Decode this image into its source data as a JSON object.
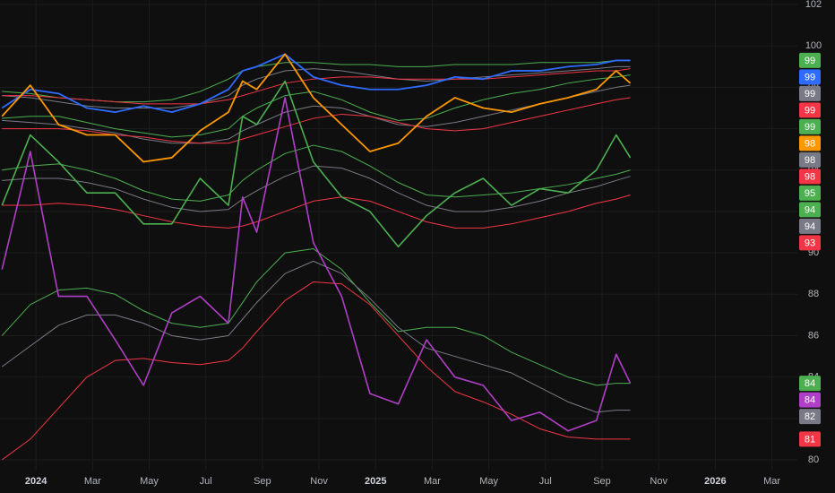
{
  "chart_data": {
    "type": "line",
    "background": "#0f0f0f",
    "grid": true,
    "xlim": [
      -1.27,
      26.9
    ],
    "ylim": [
      79.48,
      102.22
    ],
    "xticks": [
      {
        "value": 0,
        "label": "2024"
      },
      {
        "value": 2,
        "label": "Mar"
      },
      {
        "value": 4,
        "label": "May"
      },
      {
        "value": 6,
        "label": "Jul"
      },
      {
        "value": 8,
        "label": "Sep"
      },
      {
        "value": 10,
        "label": "Nov"
      },
      {
        "value": 12,
        "label": "2025"
      },
      {
        "value": 14,
        "label": "Mar"
      },
      {
        "value": 16,
        "label": "May"
      },
      {
        "value": 18,
        "label": "Jul"
      },
      {
        "value": 20,
        "label": "Sep"
      },
      {
        "value": 22,
        "label": "Nov"
      },
      {
        "value": 24,
        "label": "2026"
      },
      {
        "value": 26,
        "label": "Mar"
      }
    ],
    "yticks": [
      80,
      82,
      84,
      86,
      88,
      90,
      92,
      94,
      96,
      98,
      100,
      102
    ],
    "x": [
      -1.2,
      -0.2,
      0.8,
      1.8,
      2.8,
      3.8,
      4.8,
      5.8,
      6.8,
      7.3,
      7.8,
      8.8,
      9.8,
      10.8,
      11.8,
      12.8,
      13.8,
      14.8,
      15.8,
      16.8,
      17.8,
      18.8,
      19.8,
      20.5,
      21.0
    ],
    "series": [
      {
        "color": "#4caf50",
        "width": 1,
        "end_label": "99",
        "values": [
          97.8,
          97.7,
          97.5,
          97.4,
          97.3,
          97.3,
          97.4,
          97.8,
          98.4,
          98.8,
          99.0,
          99.2,
          99.2,
          99.1,
          99.1,
          99.0,
          99.0,
          99.1,
          99.1,
          99.1,
          99.2,
          99.2,
          99.2,
          99.3,
          99.3
        ]
      },
      {
        "color": "#2f6bff",
        "width": 1.8,
        "end_label": "99",
        "values": [
          97.0,
          97.9,
          97.7,
          97.0,
          96.8,
          97.1,
          96.8,
          97.2,
          97.9,
          98.8,
          99.0,
          99.6,
          98.5,
          98.1,
          97.9,
          97.9,
          98.1,
          98.5,
          98.4,
          98.8,
          98.8,
          99.0,
          99.1,
          99.3,
          99.3
        ]
      },
      {
        "color": "#787b86",
        "width": 1,
        "end_label": "99",
        "values": [
          97.6,
          97.5,
          97.3,
          97.1,
          97.0,
          97.0,
          97.0,
          97.2,
          97.6,
          98.1,
          98.4,
          98.8,
          98.9,
          98.8,
          98.6,
          98.4,
          98.3,
          98.4,
          98.5,
          98.6,
          98.7,
          98.8,
          98.9,
          99.0,
          99.0
        ]
      },
      {
        "color": "#f23645",
        "width": 1,
        "end_label": "99",
        "values": [
          97.6,
          97.6,
          97.5,
          97.4,
          97.3,
          97.2,
          97.2,
          97.2,
          97.4,
          97.6,
          97.8,
          98.2,
          98.4,
          98.5,
          98.5,
          98.4,
          98.4,
          98.4,
          98.4,
          98.5,
          98.6,
          98.7,
          98.8,
          98.8,
          98.9
        ]
      },
      {
        "color": "#4caf50",
        "width": 1,
        "end_label": "99",
        "values": [
          96.5,
          96.6,
          96.6,
          96.3,
          96.0,
          95.8,
          95.6,
          95.7,
          96.0,
          96.6,
          97.0,
          97.6,
          97.8,
          97.4,
          96.8,
          96.4,
          96.5,
          97.0,
          97.4,
          97.7,
          97.9,
          98.2,
          98.4,
          98.5,
          98.6
        ]
      },
      {
        "color": "#ff9800",
        "width": 1.8,
        "end_label": "98",
        "values": [
          96.6,
          98.1,
          96.2,
          95.7,
          95.7,
          94.4,
          94.6,
          95.9,
          96.8,
          98.3,
          97.9,
          99.6,
          97.5,
          96.2,
          94.9,
          95.3,
          96.6,
          97.5,
          97.0,
          96.8,
          97.2,
          97.5,
          97.9,
          98.8,
          98.2
        ]
      },
      {
        "color": "#787b86",
        "width": 1,
        "end_label": "98",
        "values": [
          96.4,
          96.3,
          96.2,
          96.0,
          95.8,
          95.5,
          95.3,
          95.3,
          95.5,
          95.9,
          96.2,
          96.8,
          97.1,
          97.0,
          96.6,
          96.2,
          96.1,
          96.3,
          96.6,
          96.9,
          97.2,
          97.5,
          97.8,
          98.0,
          98.1
        ]
      },
      {
        "color": "#f23645",
        "width": 1,
        "end_label": "98",
        "values": [
          96.0,
          96.0,
          96.0,
          95.9,
          95.7,
          95.6,
          95.4,
          95.3,
          95.3,
          95.5,
          95.7,
          96.1,
          96.5,
          96.7,
          96.6,
          96.3,
          96.0,
          95.9,
          96.0,
          96.3,
          96.6,
          96.9,
          97.2,
          97.4,
          97.5
        ]
      },
      {
        "color": "#4caf50",
        "width": 1.6,
        "end_label": "95",
        "values": [
          92.3,
          95.7,
          94.4,
          92.9,
          92.9,
          91.4,
          91.4,
          93.6,
          92.3,
          96.6,
          96.2,
          98.3,
          94.4,
          92.7,
          92.0,
          90.3,
          91.8,
          92.9,
          93.6,
          92.3,
          93.1,
          92.9,
          94.0,
          95.7,
          94.6
        ]
      },
      {
        "color": "#4caf50",
        "width": 1,
        "end_label": "94",
        "values": [
          94.0,
          94.2,
          94.3,
          94.0,
          93.6,
          93.0,
          92.6,
          92.5,
          92.8,
          93.5,
          94.0,
          94.8,
          95.2,
          94.9,
          94.2,
          93.4,
          92.8,
          92.7,
          92.8,
          92.9,
          93.1,
          93.3,
          93.6,
          93.8,
          94.0
        ]
      },
      {
        "color": "#787b86",
        "width": 1,
        "end_label": "94",
        "values": [
          93.5,
          93.6,
          93.6,
          93.4,
          93.1,
          92.6,
          92.2,
          92.0,
          92.1,
          92.6,
          93.0,
          93.7,
          94.2,
          94.1,
          93.6,
          92.9,
          92.3,
          92.0,
          92.0,
          92.2,
          92.5,
          92.9,
          93.2,
          93.5,
          93.7
        ]
      },
      {
        "color": "#f23645",
        "width": 1,
        "end_label": "93",
        "values": [
          92.3,
          92.3,
          92.4,
          92.3,
          92.1,
          91.8,
          91.5,
          91.3,
          91.2,
          91.3,
          91.5,
          92.0,
          92.5,
          92.7,
          92.5,
          92.0,
          91.5,
          91.2,
          91.2,
          91.4,
          91.7,
          92.0,
          92.4,
          92.6,
          92.8
        ]
      },
      {
        "color": "#4caf50",
        "width": 1,
        "end_label": "84",
        "values": [
          86.0,
          87.5,
          88.2,
          88.3,
          88.0,
          87.2,
          86.6,
          86.4,
          86.6,
          87.6,
          88.6,
          90.0,
          90.2,
          89.2,
          87.6,
          86.2,
          86.4,
          86.4,
          86.0,
          85.2,
          84.6,
          84.0,
          83.6,
          83.7,
          83.7
        ]
      },
      {
        "color": "#b03fc7",
        "width": 1.6,
        "end_label": "84",
        "values": [
          89.2,
          94.9,
          87.9,
          87.9,
          85.8,
          83.6,
          87.1,
          87.9,
          86.6,
          92.7,
          91.0,
          97.5,
          90.5,
          87.9,
          83.2,
          82.7,
          85.8,
          84.0,
          83.6,
          81.9,
          82.3,
          81.4,
          81.9,
          85.1,
          83.7
        ]
      },
      {
        "color": "#787b86",
        "width": 1,
        "end_label": "82",
        "values": [
          84.5,
          85.5,
          86.5,
          87.0,
          87.0,
          86.6,
          86.0,
          85.8,
          86.0,
          86.8,
          87.6,
          89.0,
          89.6,
          89.0,
          87.8,
          86.4,
          85.4,
          85.0,
          84.6,
          84.2,
          83.5,
          82.8,
          82.3,
          82.4,
          82.4
        ]
      },
      {
        "color": "#f23645",
        "width": 1,
        "end_label": "81",
        "values": [
          80.0,
          81.0,
          82.5,
          84.0,
          84.8,
          84.9,
          84.7,
          84.6,
          84.8,
          85.4,
          86.2,
          87.7,
          88.6,
          88.5,
          87.5,
          86.0,
          84.5,
          83.3,
          82.8,
          82.2,
          81.5,
          81.1,
          81.0,
          81.0,
          81.0
        ]
      }
    ]
  }
}
